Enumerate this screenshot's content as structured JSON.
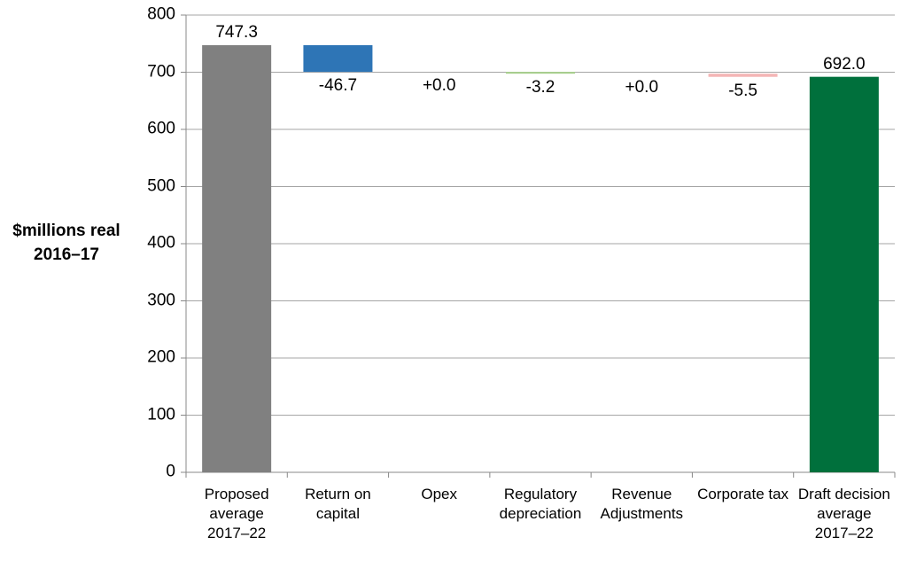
{
  "chart_data": {
    "type": "waterfall",
    "y_label": "$millions real 2016–17",
    "categories": [
      "Proposed average 2017–22",
      "Return on capital",
      "Opex",
      "Regulatory depreciation",
      "Revenue Adjustments",
      "Corporate tax",
      "Draft decision average 2017–22"
    ],
    "values": [
      747.3,
      -46.7,
      0.0,
      -3.2,
      0.0,
      -5.5,
      692.0
    ],
    "value_labels": [
      "747.3",
      "-46.7",
      "+0.0",
      "-3.2",
      "+0.0",
      "-5.5",
      "692.0"
    ],
    "colors": [
      "#808080",
      "#2e75b6",
      null,
      "#a9d18e",
      null,
      "#f4b6b6",
      "#00703c"
    ],
    "ylim": [
      0,
      800
    ],
    "yticks": [
      0,
      100,
      200,
      300,
      400,
      500,
      600,
      700,
      800
    ],
    "grid": true
  }
}
